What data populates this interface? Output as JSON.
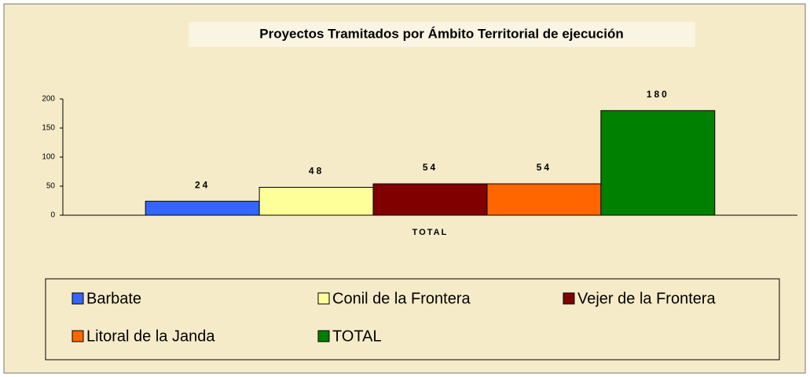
{
  "chart_data": {
    "type": "bar",
    "title": "Proyectos Tramitados por Ámbito Territorial de ejecución",
    "categories": [
      "TOTAL"
    ],
    "series": [
      {
        "name": "Barbate",
        "color": "#3366ff",
        "values": [
          24
        ]
      },
      {
        "name": "Conil de la Frontera",
        "color": "#ffff99",
        "values": [
          48
        ]
      },
      {
        "name": "Vejer de la Frontera",
        "color": "#800000",
        "values": [
          54
        ]
      },
      {
        "name": "Litoral de la Janda",
        "color": "#ff6600",
        "values": [
          54
        ]
      },
      {
        "name": "TOTAL",
        "color": "#008000",
        "values": [
          180
        ]
      }
    ],
    "ylim": [
      0,
      200
    ],
    "yticks": [
      0,
      50,
      100,
      150,
      200
    ],
    "legend": "bottom"
  }
}
